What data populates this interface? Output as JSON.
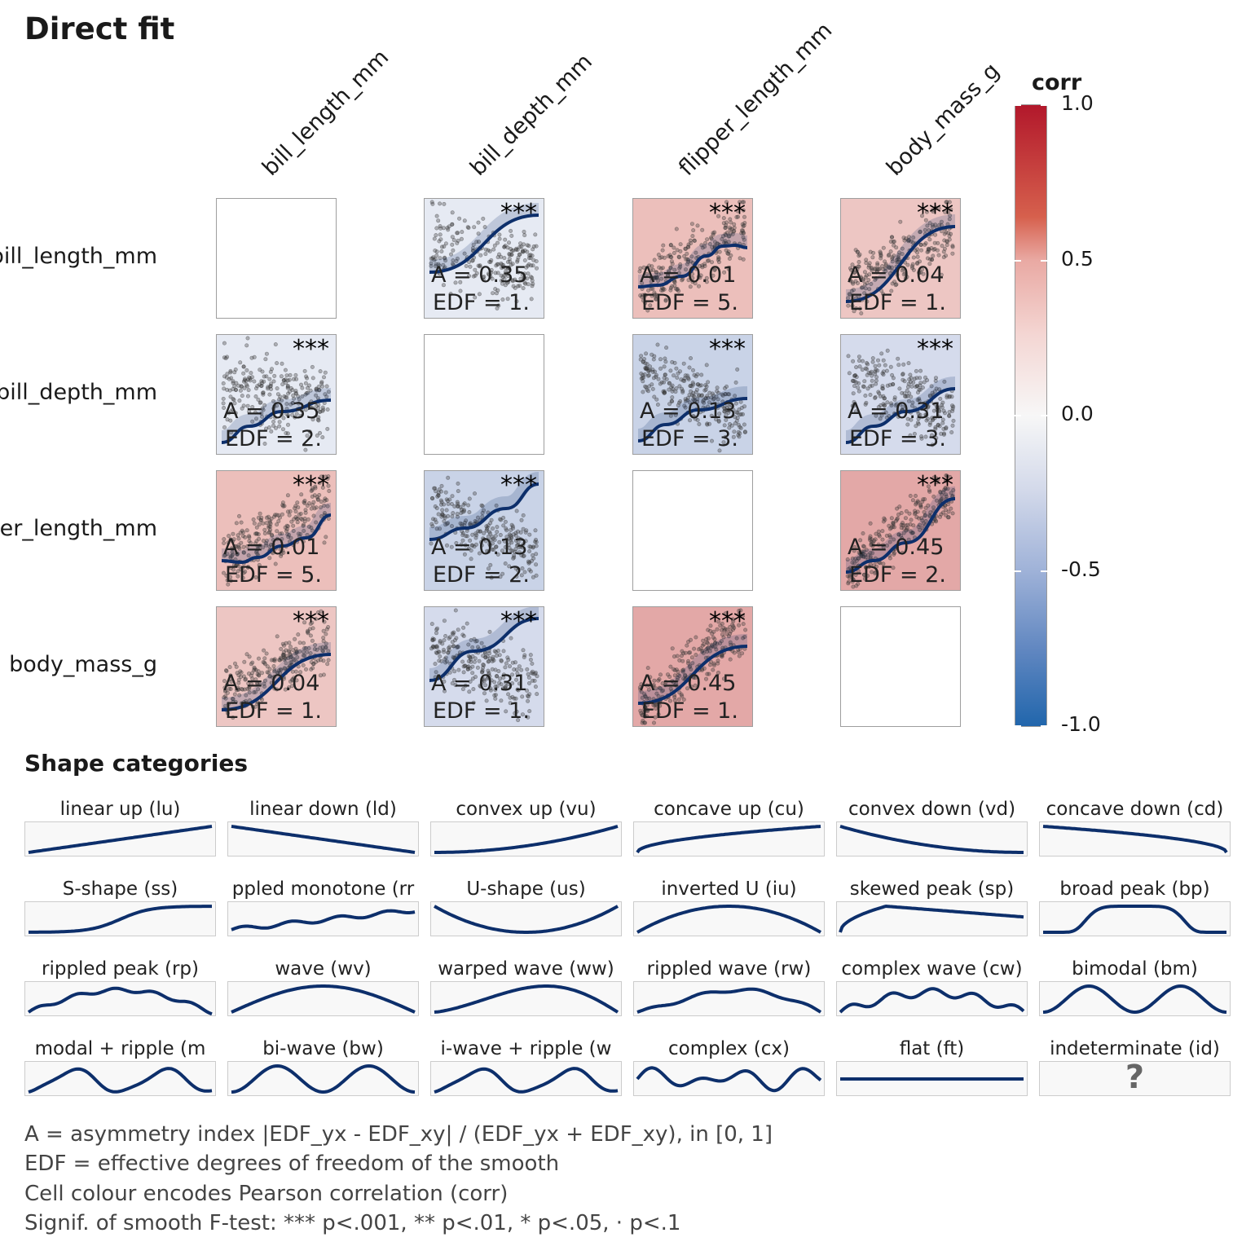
{
  "title": "Direct fit",
  "variables": [
    "bill_length_mm",
    "bill_depth_mm",
    "flipper_length_mm",
    "body_mass_g"
  ],
  "chart_data": {
    "type": "heatmap",
    "title": "Direct fit",
    "rows": [
      "bill_length_mm",
      "bill_depth_mm",
      "flipper_length_mm",
      "body_mass_g"
    ],
    "columns": [
      "bill_length_mm",
      "bill_depth_mm",
      "flipper_length_mm",
      "body_mass_g"
    ],
    "cells": [
      [
        null,
        {
          "corr": -0.24,
          "fill": "#e6eaf3",
          "signif": "***",
          "A": "A = 0.35",
          "EDF": "EDF = 1."
        },
        {
          "corr": 0.66,
          "fill": "#ecbfbb",
          "signif": "***",
          "A": "A = 0.01",
          "EDF": "EDF = 5."
        },
        {
          "corr": 0.6,
          "fill": "#edc6c3",
          "signif": "***",
          "A": "A = 0.04",
          "EDF": "EDF = 1."
        }
      ],
      [
        {
          "corr": -0.24,
          "fill": "#e6eaf3",
          "signif": "***",
          "A": "A = 0.35",
          "EDF": "EDF = 2."
        },
        null,
        {
          "corr": -0.58,
          "fill": "#c9d3e7",
          "signif": "***",
          "A": "A = 0.13",
          "EDF": "EDF = 3."
        },
        {
          "corr": -0.47,
          "fill": "#d5dbec",
          "signif": "***",
          "A": "A = 0.31",
          "EDF": "EDF = 3."
        }
      ],
      [
        {
          "corr": 0.66,
          "fill": "#ecbfbb",
          "signif": "***",
          "A": "A = 0.01",
          "EDF": "EDF = 5."
        },
        {
          "corr": -0.58,
          "fill": "#c9d3e7",
          "signif": "***",
          "A": "A = 0.13",
          "EDF": "EDF = 2."
        },
        null,
        {
          "corr": 0.87,
          "fill": "#e3a8a7",
          "signif": "***",
          "A": "A = 0.45",
          "EDF": "EDF = 2."
        }
      ],
      [
        {
          "corr": 0.6,
          "fill": "#edc6c3",
          "signif": "***",
          "A": "A = 0.04",
          "EDF": "EDF = 1."
        },
        {
          "corr": -0.47,
          "fill": "#d5dbec",
          "signif": "***",
          "A": "A = 0.31",
          "EDF": "EDF = 1."
        },
        {
          "corr": 0.87,
          "fill": "#e3a8a7",
          "signif": "***",
          "A": "A = 0.45",
          "EDF": "EDF = 1."
        },
        null
      ]
    ],
    "legend": {
      "title": "corr",
      "ticks": [
        "1.0",
        "0.5",
        "0.0",
        "-0.5",
        "-1.0"
      ],
      "range": [
        -1,
        1
      ],
      "colors": {
        "high": "#b2182b",
        "mid": "#f7f7f7",
        "low": "#2166ac"
      }
    },
    "smooth_color": "#0d2f6b"
  },
  "shapes": {
    "title": "Shape categories",
    "items": [
      {
        "label": "linear up (lu)",
        "code": "lu"
      },
      {
        "label": "linear down (ld)",
        "code": "ld"
      },
      {
        "label": "convex up (vu)",
        "code": "vu"
      },
      {
        "label": "concave up (cu)",
        "code": "cu"
      },
      {
        "label": "convex down (vd)",
        "code": "vd"
      },
      {
        "label": "concave down (cd)",
        "code": "cd"
      },
      {
        "label": "S-shape (ss)",
        "code": "ss"
      },
      {
        "label": "ppled monotone (rr",
        "code": "rm"
      },
      {
        "label": "U-shape (us)",
        "code": "us"
      },
      {
        "label": "inverted U (iu)",
        "code": "iu"
      },
      {
        "label": "skewed peak (sp)",
        "code": "sp"
      },
      {
        "label": "broad peak (bp)",
        "code": "bp"
      },
      {
        "label": "rippled peak (rp)",
        "code": "rp"
      },
      {
        "label": "wave (wv)",
        "code": "wv"
      },
      {
        "label": "warped wave (ww)",
        "code": "ww"
      },
      {
        "label": "rippled wave (rw)",
        "code": "rw"
      },
      {
        "label": "complex wave (cw)",
        "code": "cw"
      },
      {
        "label": "bimodal (bm)",
        "code": "bm"
      },
      {
        "label": "modal + ripple (m",
        "code": "mr"
      },
      {
        "label": "bi-wave (bw)",
        "code": "bw"
      },
      {
        "label": "i-wave + ripple (w",
        "code": "wr"
      },
      {
        "label": "complex (cx)",
        "code": "cx"
      },
      {
        "label": "flat (ft)",
        "code": "ft"
      },
      {
        "label": "indeterminate (id)",
        "code": "id",
        "glyph": "?"
      }
    ]
  },
  "notes": [
    "A = asymmetry index |EDF_yx - EDF_xy| / (EDF_yx + EDF_xy), in [0, 1]",
    "EDF = effective degrees of freedom of the smooth",
    "Cell colour encodes Pearson correlation (corr)",
    "Signif. of smooth F-test: *** p<.001, ** p<.01, * p<.05, · p<.1"
  ]
}
